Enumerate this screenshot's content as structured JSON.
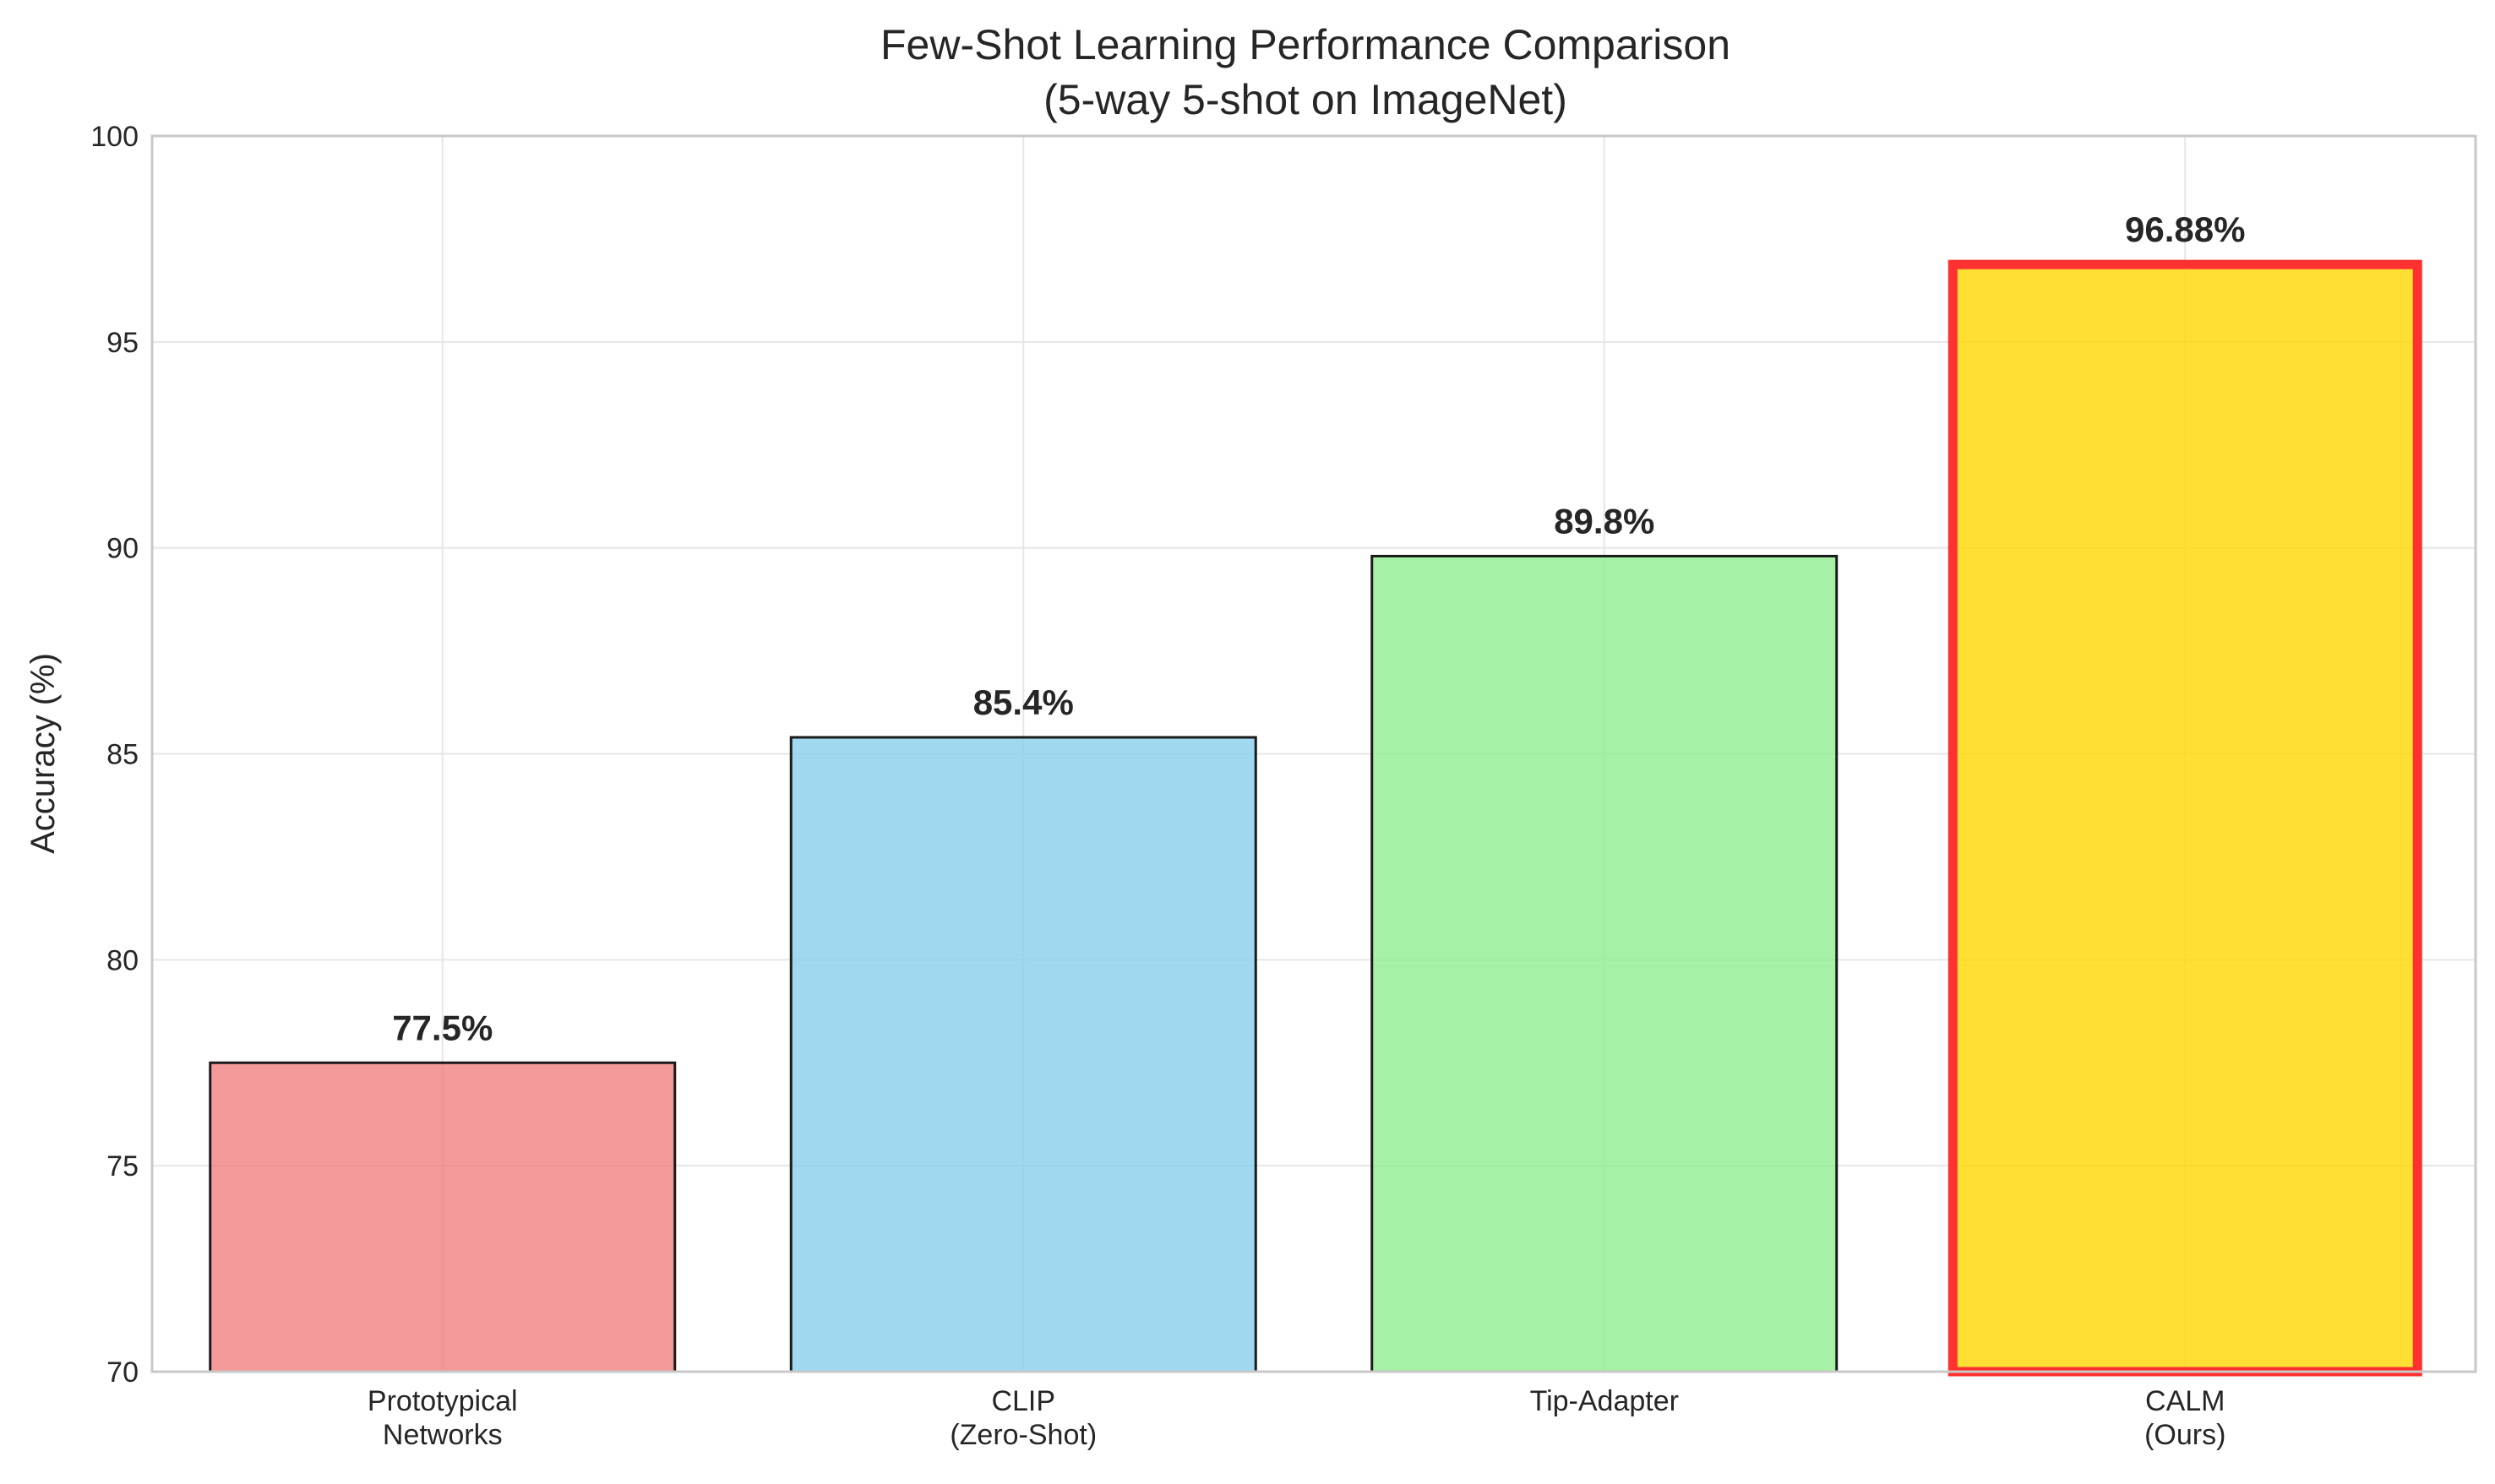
{
  "chart_data": {
    "type": "bar",
    "title_lines": [
      "Few-Shot Learning Performance Comparison",
      "(5-way 5-shot on ImageNet)"
    ],
    "xlabel": "",
    "ylabel": "Accuracy (%)",
    "ylim": [
      70,
      100
    ],
    "yticks": [
      "70",
      "75",
      "80",
      "85",
      "90",
      "95",
      "100"
    ],
    "grid": true,
    "categories": [
      [
        "Prototypical",
        "Networks"
      ],
      [
        "CLIP",
        "(Zero-Shot)"
      ],
      [
        "Tip-Adapter"
      ],
      [
        "CALM",
        "(Ours)"
      ]
    ],
    "values": [
      77.5,
      85.4,
      89.8,
      96.88
    ],
    "value_labels": [
      "77.5%",
      "85.4%",
      "89.8%",
      "96.88%"
    ],
    "colors": [
      "#f08080",
      "#87ceeb",
      "#90ee90",
      "#ffd700"
    ],
    "highlight_edge_color": "#ff3030",
    "edge_color": "#1a1a1a",
    "highlight_index": 3
  }
}
